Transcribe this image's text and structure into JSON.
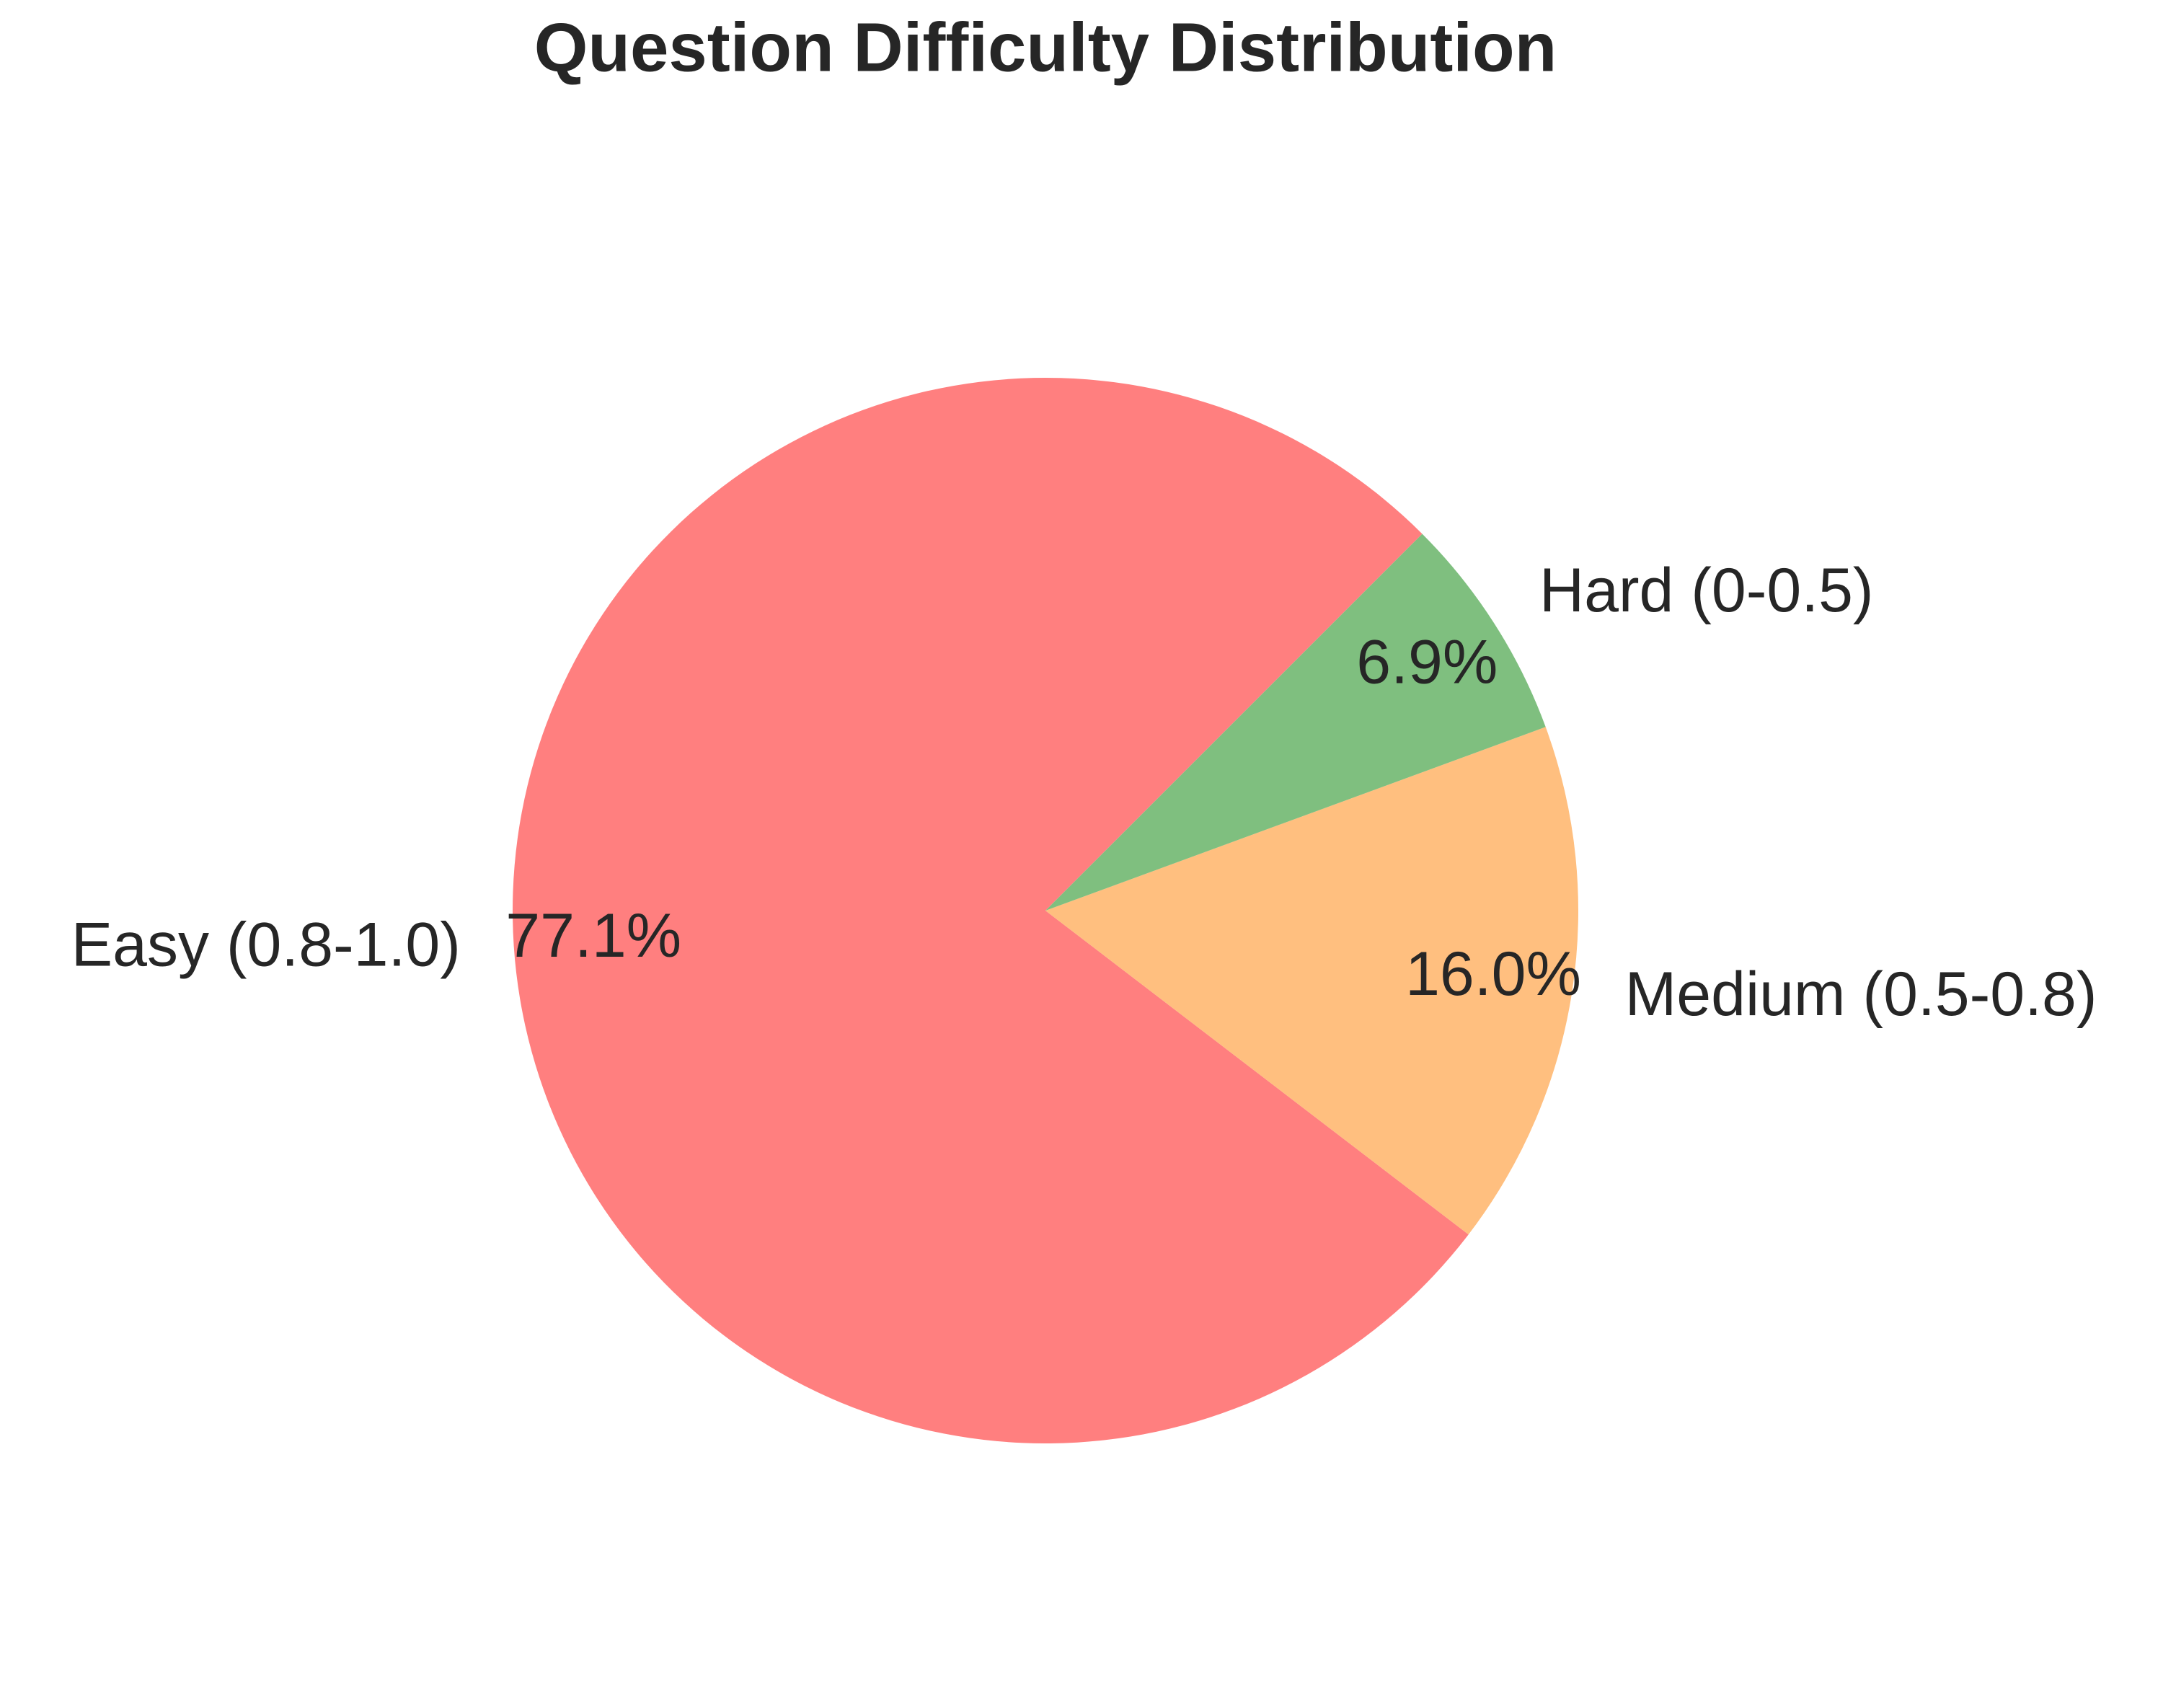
{
  "chart_data": {
    "type": "pie",
    "title": "Question Difficulty Distribution",
    "categories": [
      "Easy (0.8-1.0)",
      "Medium (0.5-0.8)",
      "Hard (0-0.5)"
    ],
    "values": [
      77.1,
      16.0,
      6.9
    ],
    "value_labels": [
      "77.1%",
      "16.0%",
      "6.9%"
    ],
    "colors": [
      "#ff7f7f",
      "#ffbf7f",
      "#7fbf7f"
    ]
  }
}
